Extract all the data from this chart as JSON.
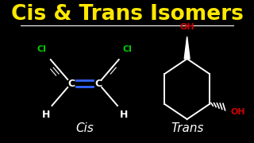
{
  "bg_color": "#000000",
  "title": "Cis & Trans Isomers",
  "title_color": "#FFE800",
  "title_fontsize": 19,
  "separator_color": "#FFFFFF",
  "cis_label": "Cis",
  "trans_label": "Trans",
  "label_color": "#FFFFFF",
  "label_fontsize": 11,
  "cl_color": "#00CC00",
  "oh_color": "#CC0000",
  "h_color": "#FFFFFF",
  "c_color": "#FFFFFF",
  "double_bond_color": "#3366FF",
  "struct_color": "#FFFFFF",
  "lw": 1.4
}
